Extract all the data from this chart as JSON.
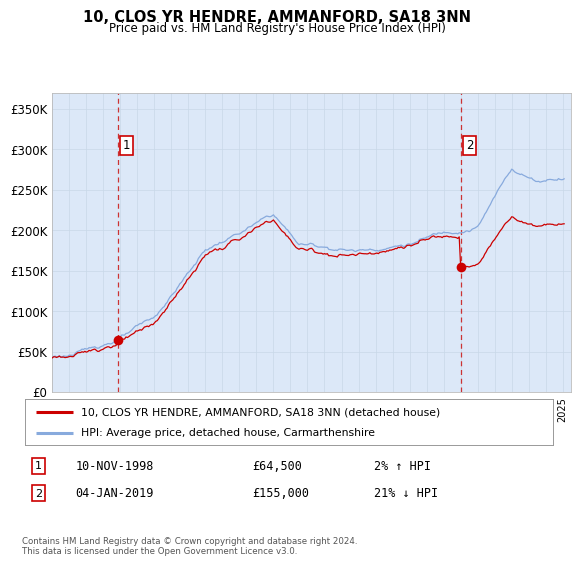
{
  "title": "10, CLOS YR HENDRE, AMMANFORD, SA18 3NN",
  "subtitle": "Price paid vs. HM Land Registry's House Price Index (HPI)",
  "background_color": "#dce8f8",
  "ylim": [
    0,
    370000
  ],
  "yticks": [
    0,
    50000,
    100000,
    150000,
    200000,
    250000,
    300000,
    350000
  ],
  "ytick_labels": [
    "£0",
    "£50K",
    "£100K",
    "£150K",
    "£200K",
    "£250K",
    "£300K",
    "£350K"
  ],
  "sale1_date_num": 1998.86,
  "sale1_price": 64500,
  "sale2_date_num": 2019.01,
  "sale2_price": 155000,
  "sale1_date_str": "10-NOV-1998",
  "sale1_price_str": "£64,500",
  "sale1_hpi_str": "2% ↑ HPI",
  "sale2_date_str": "04-JAN-2019",
  "sale2_price_str": "£155,000",
  "sale2_hpi_str": "21% ↓ HPI",
  "hpi_color": "#88aadd",
  "sale_color": "#cc0000",
  "dashed_line_color": "#cc3333",
  "box_edge_color": "#cc0000",
  "footer_text": "Contains HM Land Registry data © Crown copyright and database right 2024.\nThis data is licensed under the Open Government Licence v3.0.",
  "legend_label1": "10, CLOS YR HENDRE, AMMANFORD, SA18 3NN (detached house)",
  "legend_label2": "HPI: Average price, detached house, Carmarthenshire",
  "xlim_start": 1995,
  "xlim_end": 2025.5
}
